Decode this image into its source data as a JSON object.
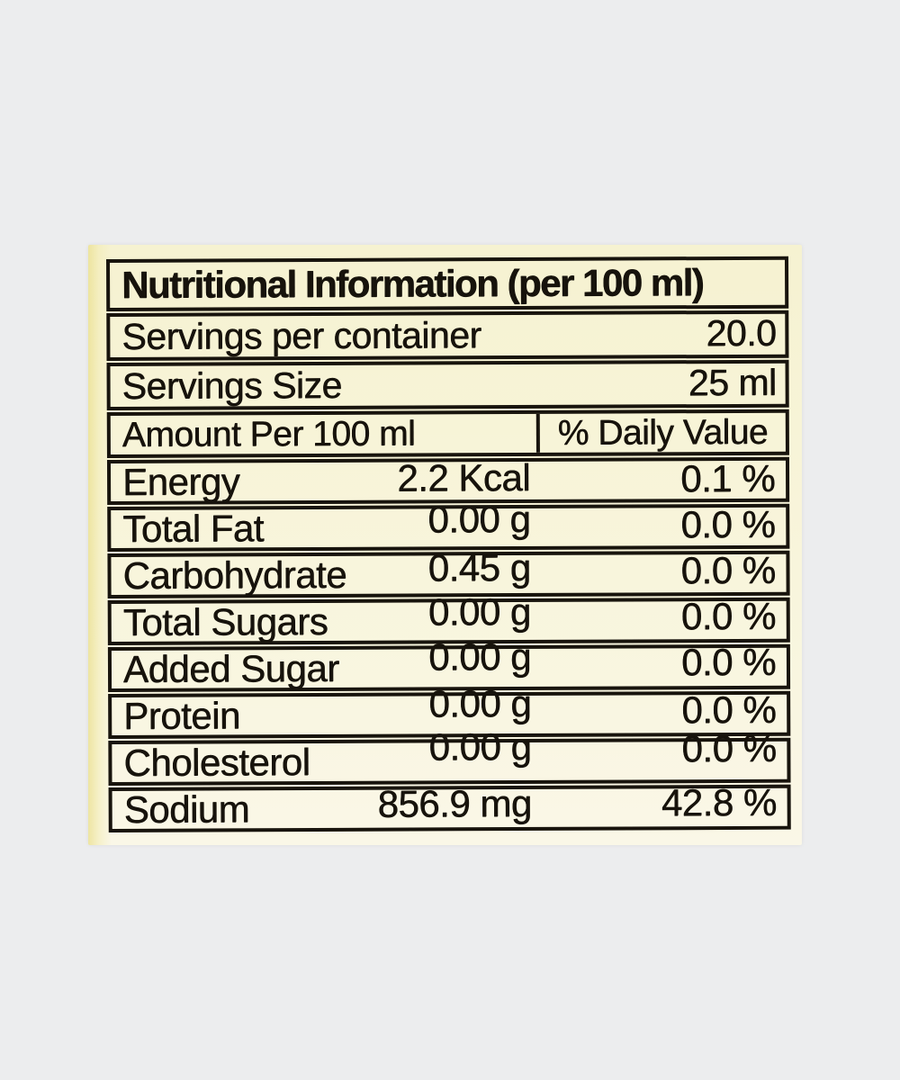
{
  "colors": {
    "page_background": "#ecedee",
    "paper_background": "#f7f4d8",
    "ink": "#18140d"
  },
  "label": {
    "title": "Nutritional Information (per 100 ml)",
    "servings_per_container": {
      "label": "Servings per container",
      "value": "20.0"
    },
    "serving_size": {
      "label": "Servings Size",
      "value": "25 ml"
    },
    "columns": {
      "amount_header": "Amount Per 100 ml",
      "dv_header": "% Daily Value"
    },
    "rows": [
      {
        "name": "Energy",
        "amount": "2.2 Kcal",
        "dv": "0.1 %"
      },
      {
        "name": "Total Fat",
        "amount": "0.00 g",
        "dv": "0.0 %"
      },
      {
        "name": "Carbohydrate",
        "amount": "0.45 g",
        "dv": "0.0 %"
      },
      {
        "name": "Total Sugars",
        "amount": "0.00 g",
        "dv": "0.0 %"
      },
      {
        "name": "Added Sugar",
        "amount": "0.00 g",
        "dv": "0.0 %"
      },
      {
        "name": "Protein",
        "amount": "0.00 g",
        "dv": "0.0 %"
      },
      {
        "name": "Cholesterol",
        "amount": "0.00 g",
        "dv": "0.0 %"
      },
      {
        "name": "Sodium",
        "amount": "856.9 mg",
        "dv": "42.8 %"
      }
    ]
  }
}
